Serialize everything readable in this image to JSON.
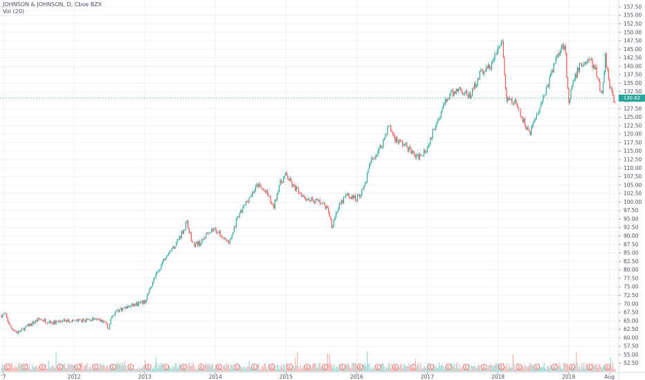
{
  "header": {
    "symbol_line": "JOHNSON & JOHNSON, D, Cboe BZX",
    "volume_line": "Vol (20)"
  },
  "colors": {
    "up": "#26a69a",
    "down": "#ef5350",
    "grid": "#eef1f5",
    "axis_text": "#4a4f5c",
    "last_price": "#26a69a",
    "earnings_marker": "#ef5350"
  },
  "chart_data": {
    "type": "candlestick",
    "title": "JOHNSON & JOHNSON, D, Cboe BZX",
    "ylabel": "",
    "xlabel": "",
    "ylim": [
      50,
      158.5
    ],
    "y_ticks": [
      "157.50",
      "155.00",
      "152.50",
      "150.00",
      "147.50",
      "145.00",
      "142.50",
      "140.00",
      "137.50",
      "135.00",
      "132.50",
      "130.00",
      "127.50",
      "125.00",
      "122.50",
      "120.00",
      "117.50",
      "115.00",
      "112.50",
      "110.00",
      "107.50",
      "105.00",
      "102.50",
      "100.00",
      "97.50",
      "95.00",
      "92.50",
      "90.00",
      "87.50",
      "85.00",
      "82.50",
      "80.00",
      "77.50",
      "75.00",
      "72.50",
      "70.00",
      "67.50",
      "65.00",
      "62.50",
      "60.00",
      "57.50",
      "55.00",
      "52.50"
    ],
    "x_ticks": [
      {
        "label": "'7",
        "t": 2011.0
      },
      {
        "label": "2012",
        "t": 2012.0
      },
      {
        "label": "2013",
        "t": 2013.0
      },
      {
        "label": "2014",
        "t": 2014.0
      },
      {
        "label": "2015",
        "t": 2015.0
      },
      {
        "label": "2016",
        "t": 2016.0
      },
      {
        "label": "2017",
        "t": 2017.0
      },
      {
        "label": "2018",
        "t": 2018.0
      },
      {
        "label": "2019",
        "t": 2019.0
      },
      {
        "label": "Aug",
        "t": 2019.58
      }
    ],
    "xlim": [
      2010.95,
      2019.7
    ],
    "last_price": "130.62",
    "last_price_value": 130.62,
    "price_path": [
      [
        2010.95,
        66.5
      ],
      [
        2011.02,
        67.0
      ],
      [
        2011.1,
        63.0
      ],
      [
        2011.2,
        61.5
      ],
      [
        2011.35,
        63.5
      ],
      [
        2011.5,
        65.5
      ],
      [
        2011.7,
        64.5
      ],
      [
        2011.9,
        65.0
      ],
      [
        2012.1,
        65.0
      ],
      [
        2012.3,
        65.5
      ],
      [
        2012.45,
        64.5
      ],
      [
        2012.48,
        61.5
      ],
      [
        2012.52,
        66.0
      ],
      [
        2012.6,
        68.0
      ],
      [
        2012.75,
        69.0
      ],
      [
        2012.9,
        70.0
      ],
      [
        2013.0,
        70.5
      ],
      [
        2013.1,
        76.0
      ],
      [
        2013.2,
        80.0
      ],
      [
        2013.3,
        84.5
      ],
      [
        2013.42,
        87.0
      ],
      [
        2013.5,
        90.0
      ],
      [
        2013.6,
        94.0
      ],
      [
        2013.68,
        87.5
      ],
      [
        2013.8,
        88.0
      ],
      [
        2013.9,
        91.5
      ],
      [
        2014.0,
        92.0
      ],
      [
        2014.08,
        90.0
      ],
      [
        2014.2,
        88.0
      ],
      [
        2014.3,
        94.5
      ],
      [
        2014.45,
        100.5
      ],
      [
        2014.6,
        105.0
      ],
      [
        2014.75,
        102.0
      ],
      [
        2014.82,
        98.0
      ],
      [
        2014.9,
        105.0
      ],
      [
        2015.0,
        108.0
      ],
      [
        2015.1,
        104.5
      ],
      [
        2015.3,
        101.0
      ],
      [
        2015.5,
        100.0
      ],
      [
        2015.6,
        97.5
      ],
      [
        2015.65,
        93.0
      ],
      [
        2015.72,
        97.5
      ],
      [
        2015.85,
        102.0
      ],
      [
        2016.0,
        101.0
      ],
      [
        2016.1,
        104.0
      ],
      [
        2016.2,
        112.0
      ],
      [
        2016.35,
        116.5
      ],
      [
        2016.45,
        122.5
      ],
      [
        2016.55,
        118.5
      ],
      [
        2016.7,
        116.5
      ],
      [
        2016.85,
        113.0
      ],
      [
        2017.0,
        116.0
      ],
      [
        2017.15,
        125.0
      ],
      [
        2017.3,
        131.0
      ],
      [
        2017.45,
        133.5
      ],
      [
        2017.6,
        131.0
      ],
      [
        2017.75,
        138.0
      ],
      [
        2017.9,
        140.0
      ],
      [
        2018.02,
        146.0
      ],
      [
        2018.06,
        147.0
      ],
      [
        2018.12,
        130.0
      ],
      [
        2018.25,
        129.0
      ],
      [
        2018.35,
        124.0
      ],
      [
        2018.45,
        120.5
      ],
      [
        2018.55,
        126.0
      ],
      [
        2018.7,
        134.0
      ],
      [
        2018.85,
        144.0
      ],
      [
        2018.95,
        147.0
      ],
      [
        2019.0,
        128.0
      ],
      [
        2019.05,
        134.0
      ],
      [
        2019.15,
        140.0
      ],
      [
        2019.3,
        142.0
      ],
      [
        2019.4,
        138.0
      ],
      [
        2019.47,
        131.0
      ],
      [
        2019.52,
        143.0
      ],
      [
        2019.58,
        135.0
      ],
      [
        2019.65,
        128.5
      ],
      [
        2019.7,
        130.62
      ]
    ]
  }
}
